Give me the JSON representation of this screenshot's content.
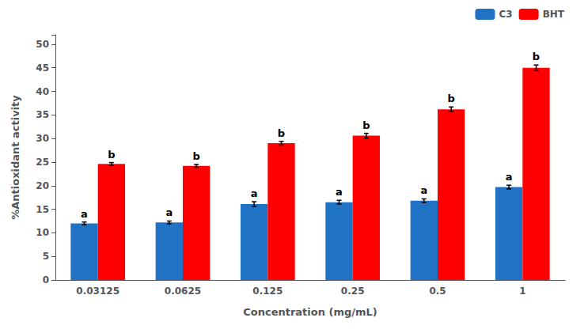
{
  "chart_data": {
    "type": "bar",
    "categories": [
      "0.03125",
      "0.0625",
      "0.125",
      "0.25",
      "0.5",
      "1"
    ],
    "series": [
      {
        "name": "C3",
        "color": "#1F72C4",
        "values": [
          12.0,
          12.2,
          16.1,
          16.5,
          16.8,
          19.7
        ],
        "errors": [
          0.3,
          0.3,
          0.5,
          0.4,
          0.4,
          0.4
        ],
        "annotations": [
          "a",
          "a",
          "a",
          "a",
          "a",
          "a"
        ]
      },
      {
        "name": "BHT",
        "color": "#FF0000",
        "values": [
          24.6,
          24.2,
          29.0,
          30.6,
          36.2,
          45.0
        ],
        "errors": [
          0.3,
          0.3,
          0.4,
          0.5,
          0.5,
          0.6
        ],
        "annotations": [
          "b",
          "b",
          "b",
          "b",
          "b",
          "b"
        ]
      }
    ],
    "xlabel": "Concentration (mg/mL)",
    "ylabel": "%Antioxidant activity",
    "ylim": [
      0,
      52
    ],
    "yticks": [
      0,
      5,
      10,
      15,
      20,
      25,
      30,
      35,
      40,
      45,
      50
    ],
    "grid": false,
    "legend": "upper right"
  }
}
